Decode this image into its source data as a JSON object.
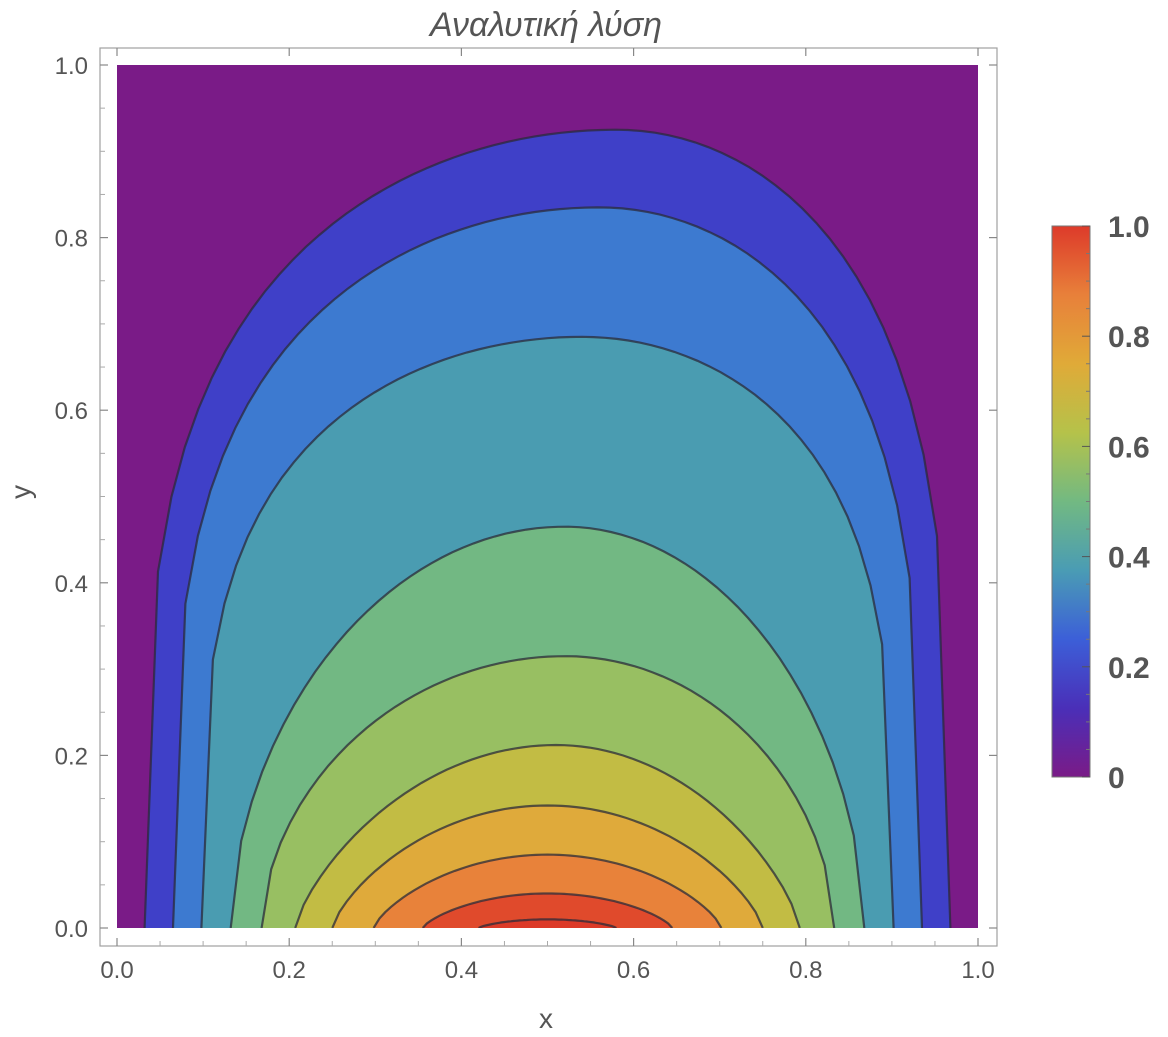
{
  "chart_data": {
    "type": "contour",
    "title": "Αναλυτική λύση",
    "xlabel": "x",
    "ylabel": "y",
    "xlim": [
      0.0,
      1.0
    ],
    "ylim": [
      0.0,
      1.0
    ],
    "x_ticks": [
      "0.0",
      "0.2",
      "0.4",
      "0.6",
      "0.8",
      "1.0"
    ],
    "y_ticks": [
      "0.0",
      "0.2",
      "0.4",
      "0.6",
      "0.8",
      "1.0"
    ],
    "colorbar": {
      "min": 0,
      "max": 1.0,
      "ticks": [
        "0",
        "0.2",
        "0.4",
        "0.6",
        "0.8",
        "1.0"
      ],
      "colors": [
        "#7a1b87",
        "#4a2fb8",
        "#3c5fd8",
        "#4a9cb4",
        "#72b982",
        "#b5c24a",
        "#e0aa38",
        "#e8803a",
        "#dd3a2a"
      ]
    },
    "contour_levels": [
      0.1,
      0.2,
      0.3,
      0.4,
      0.5,
      0.6,
      0.7,
      0.8,
      0.9,
      0.95
    ],
    "band_colors": [
      "#7a1b87",
      "#3f40c8",
      "#3d7ad0",
      "#4a9cb1",
      "#72b883",
      "#98bf62",
      "#c2bc44",
      "#dfaa3b",
      "#e8823a",
      "#e04a2c",
      "#dc3a28"
    ],
    "contour_apex_y": [
      0.925,
      0.835,
      0.685,
      0.465,
      0.315,
      0.212,
      0.142,
      0.085,
      0.04,
      0.01
    ],
    "contour_base_x": [
      [
        0.032,
        0.968
      ],
      [
        0.065,
        0.935
      ],
      [
        0.098,
        0.902
      ],
      [
        0.132,
        0.868
      ],
      [
        0.168,
        0.833
      ],
      [
        0.207,
        0.793
      ],
      [
        0.25,
        0.75
      ],
      [
        0.298,
        0.702
      ],
      [
        0.355,
        0.645
      ],
      [
        0.42,
        0.58
      ]
    ]
  }
}
